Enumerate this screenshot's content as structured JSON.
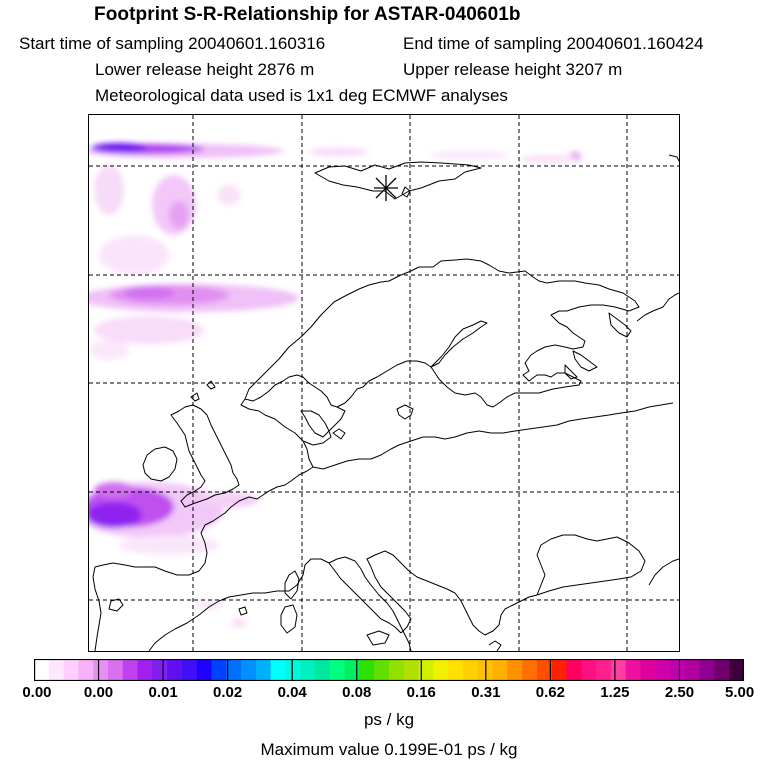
{
  "title": "Footprint S-R-Relationship for ASTAR-040601b",
  "header": {
    "start_time": "Start time of sampling 20040601.160316",
    "end_time": "End time of sampling 20040601.160424",
    "lower_height": "Lower release height 2876 m",
    "upper_height": "Upper release height 3207 m",
    "met_data": "Meteorological data used is 1x1 deg ECMWF analyses"
  },
  "map": {
    "receptor_marker_icon": "asterisk-icon",
    "gridline_style": "dashed",
    "coastline_color": "#000000"
  },
  "colorbar": {
    "tick_labels": [
      "0.00",
      "0.00",
      "0.01",
      "0.02",
      "0.04",
      "0.08",
      "0.16",
      "0.31",
      "0.62",
      "1.25",
      "2.50",
      "5.00"
    ],
    "unit": "ps / kg",
    "colors": [
      "#ffffff",
      "#ffe8ff",
      "#ffd0ff",
      "#f8b0f8",
      "#e890f0",
      "#d870f0",
      "#c040f0",
      "#a020f0",
      "#8020f0",
      "#6010f0",
      "#4010f8",
      "#2000ff",
      "#0040ff",
      "#0070ff",
      "#0090ff",
      "#00b0ff",
      "#00ffff",
      "#00f8e0",
      "#00f0c0",
      "#00e8a0",
      "#00ff80",
      "#00f060",
      "#30e000",
      "#60e000",
      "#90e000",
      "#b0e000",
      "#d0f000",
      "#f0f000",
      "#ffe000",
      "#ffd000",
      "#ffc000",
      "#ffb000",
      "#ff9000",
      "#ff7000",
      "#ff5000",
      "#ff2000",
      "#ff0060",
      "#ff1080",
      "#ff2090",
      "#ff40a0",
      "#f010a0",
      "#e000a0",
      "#d000a8",
      "#c000b0",
      "#b000a0",
      "#900090",
      "#700070",
      "#400040"
    ]
  },
  "max_value_text": "Maximum value  0.199E-01 ps / kg"
}
